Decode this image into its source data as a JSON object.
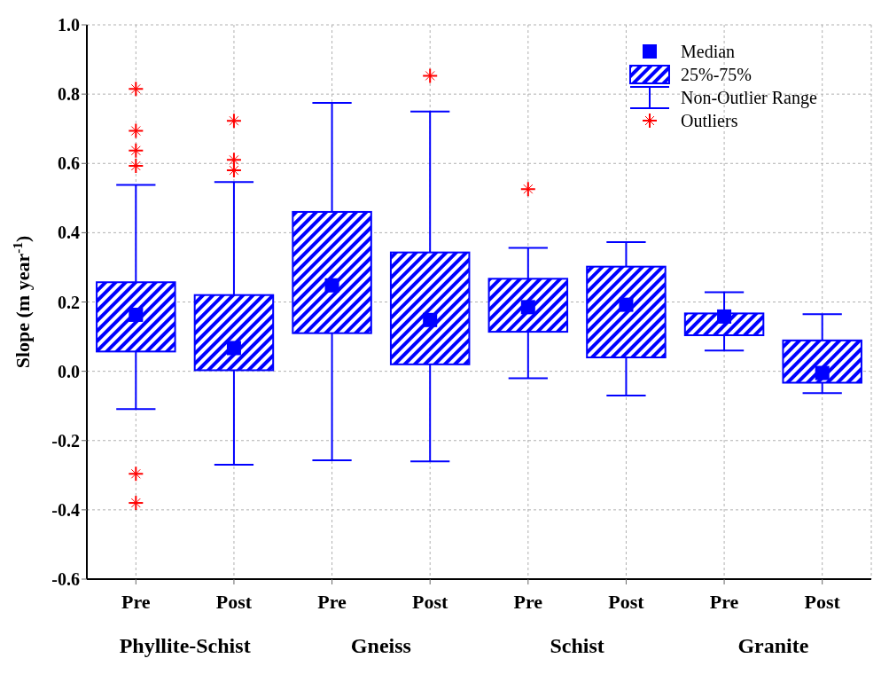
{
  "chart_data": {
    "type": "box",
    "ylabel": "Slope (m year$^{-1}$)",
    "categories": [
      "Pre",
      "Post",
      "Pre",
      "Post",
      "Pre",
      "Post",
      "Pre",
      "Post"
    ],
    "ylim": [
      -0.6,
      1.0
    ],
    "yticks": [
      {
        "value": -0.6,
        "label": "-0.6"
      },
      {
        "value": -0.4,
        "label": "-0.4"
      },
      {
        "value": -0.2,
        "label": "-0.2"
      },
      {
        "value": 0,
        "label": "0.0"
      },
      {
        "value": 0.2,
        "label": "0.2"
      },
      {
        "value": 0.4,
        "label": "0.4"
      },
      {
        "value": 0.6,
        "label": "0.6"
      },
      {
        "value": 0.8,
        "label": "0.8"
      },
      {
        "value": 1.0,
        "label": "1.0"
      }
    ],
    "grid": true,
    "legend": "top right",
    "series": [
      {
        "type": "box",
        "name": "25%-75%",
        "color": "#0000ff",
        "boxes": [
          {
            "low": -0.109,
            "q1": 0.057,
            "median": 0.163,
            "q3": 0.257,
            "high": 0.538,
            "outliers": [
              0.815,
              0.694,
              0.637,
              0.593,
              -0.296,
              -0.38
            ]
          },
          {
            "low": -0.27,
            "q1": 0.003,
            "median": 0.067,
            "q3": 0.22,
            "high": 0.546,
            "outliers": [
              0.723,
              0.61,
              0.58
            ]
          },
          {
            "low": -0.257,
            "q1": 0.11,
            "median": 0.248,
            "q3": 0.46,
            "high": 0.775
          },
          {
            "low": -0.26,
            "q1": 0.02,
            "median": 0.148,
            "q3": 0.343,
            "high": 0.75,
            "outliers": [
              0.853
            ]
          },
          {
            "low": -0.02,
            "q1": 0.114,
            "median": 0.185,
            "q3": 0.267,
            "high": 0.356,
            "outliers": [
              0.526
            ]
          },
          {
            "low": -0.07,
            "q1": 0.04,
            "median": 0.192,
            "q3": 0.302,
            "high": 0.373
          },
          {
            "low": 0.06,
            "q1": 0.104,
            "median": 0.158,
            "q3": 0.167,
            "high": 0.228
          },
          {
            "low": -0.063,
            "q1": -0.033,
            "median": -0.005,
            "q3": 0.089,
            "high": 0.165
          }
        ]
      }
    ],
    "annotations": [
      "Phyllite-Schist",
      "Gneiss",
      "Schist",
      "Granite",
      "Median",
      "Non-Outlier Range",
      "Outliers"
    ]
  }
}
